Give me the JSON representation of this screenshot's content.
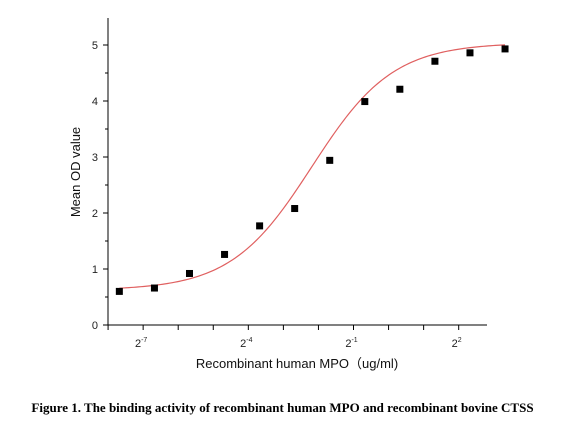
{
  "chart_data": {
    "type": "scatter",
    "x_scale": "log2",
    "xlabel": "Recombinant human MPO（ug/ml)",
    "ylabel": "Mean OD value",
    "ylim": [
      0,
      5
    ],
    "xlim": [
      0.0039,
      7
    ],
    "y_ticks": [
      0,
      1,
      2,
      3,
      4,
      5
    ],
    "x_tick_labels": [
      {
        "value": 0.0078125,
        "base": "2",
        "exp": "-7"
      },
      {
        "value": 0.0625,
        "base": "2",
        "exp": "-4"
      },
      {
        "value": 0.5,
        "base": "2",
        "exp": "-1"
      },
      {
        "value": 4,
        "base": "2",
        "exp": "2"
      }
    ],
    "x": [
      0.00488,
      0.00977,
      0.01953,
      0.03906,
      0.07813,
      0.15625,
      0.3125,
      0.625,
      1.25,
      2.5,
      5,
      10
    ],
    "y": [
      0.6,
      0.66,
      0.92,
      1.26,
      1.77,
      2.08,
      2.94,
      3.99,
      4.21,
      4.71,
      4.86,
      4.93
    ],
    "fit_curve": {
      "model": "4PL",
      "bottom": 0.62,
      "top": 5.04,
      "ec50": 0.22,
      "hill": 1.25,
      "color": "#e06060"
    },
    "marker_color": "#000000",
    "grid": false
  },
  "caption": "Figure 1. The binding activity of recombinant human MPO and recombinant bovine CTSS"
}
